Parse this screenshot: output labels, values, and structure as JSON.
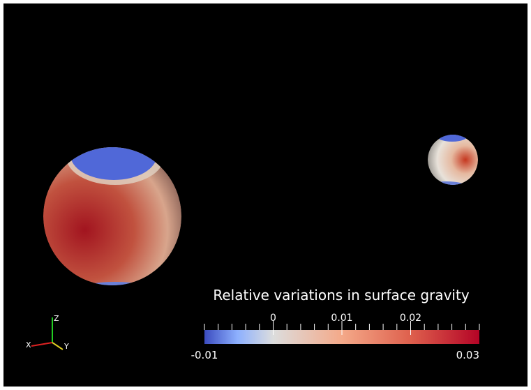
{
  "colorbar": {
    "title": "Relative variations in surface gravity",
    "range": [
      -0.01,
      0.03
    ],
    "ticks": [
      0,
      0.01,
      0.02
    ]
  },
  "axes": {
    "x": "X",
    "y": "Y",
    "z": "Z"
  }
}
